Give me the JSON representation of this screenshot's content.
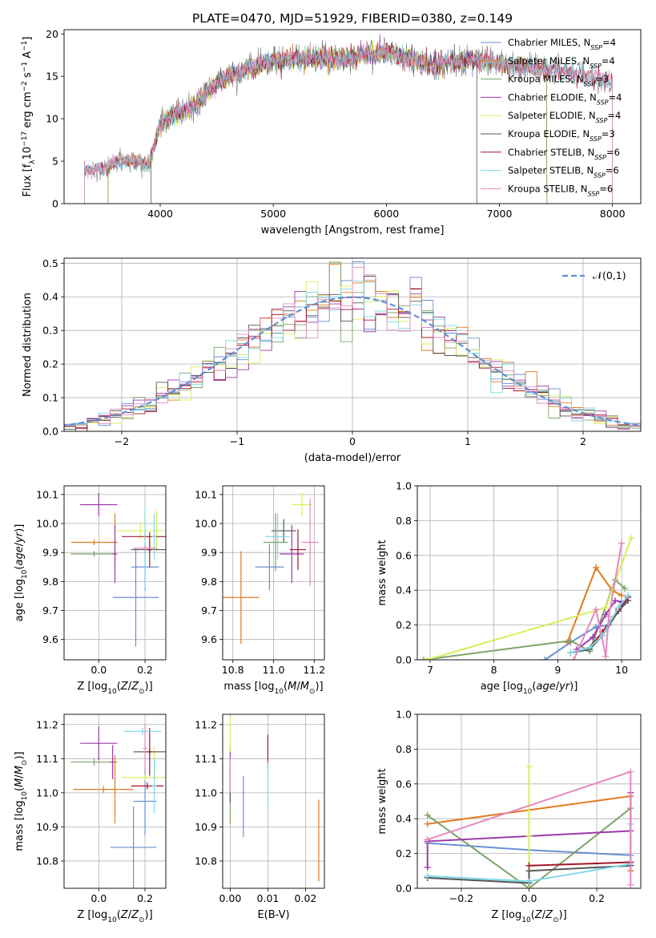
{
  "figure_title": "PLATE=0470, MJD=51929, FIBERID=0380, z=0.149",
  "colors": [
    "#6a8fd6",
    "#e07a1f",
    "#7da46b",
    "#9c3aa9",
    "#d8ee5a",
    "#555555",
    "#a3172a",
    "#7fd8e6",
    "#e589c0"
  ],
  "chart_data": [
    {
      "id": "spectrum",
      "type": "line",
      "title": "PLATE=0470, MJD=51929, FIBERID=0380, z=0.149",
      "xlabel": "wavelength [Angstrom, rest frame]",
      "ylabel": "Flux [f_λ 10^-17 erg cm^-2 s^-1 A^-1]",
      "xlim": [
        3150,
        8250
      ],
      "ylim": [
        0,
        20.5
      ],
      "xticks": [
        4000,
        5000,
        6000,
        7000,
        8000
      ],
      "yticks": [
        0,
        5,
        10,
        15,
        20
      ],
      "grid": false,
      "legend_position": "top-right",
      "continuum": {
        "x": [
          3330,
          3500,
          3600,
          3700,
          3800,
          3900,
          4000,
          4100,
          4200,
          4300,
          4400,
          4500,
          4600,
          4700,
          4800,
          4900,
          5000,
          5200,
          5400,
          5600,
          5800,
          6000,
          6200,
          6400,
          6600,
          6800,
          7000,
          7200,
          7400,
          7600,
          7800,
          8000
        ],
        "y": [
          3.9,
          4.1,
          4.7,
          5.1,
          5.0,
          4.5,
          9.5,
          10.2,
          10.8,
          11.5,
          13.0,
          14.2,
          15.0,
          15.5,
          16.0,
          16.3,
          16.8,
          17.1,
          17.2,
          17.0,
          17.6,
          17.8,
          17.1,
          16.4,
          16.7,
          17.0,
          16.5,
          16.1,
          15.8,
          15.5,
          15.0,
          14.3
        ]
      },
      "series": [
        {
          "name": "Chabrier MILES, N_SSP=4",
          "fit_range": [
            3540,
            7420
          ]
        },
        {
          "name": "Salpeter MILES, N_SSP=4",
          "fit_range": [
            3540,
            7420
          ]
        },
        {
          "name": "Kroupa MILES, N_SSP=3",
          "fit_range": [
            3540,
            7420
          ]
        },
        {
          "name": "Chabrier ELODIE, N_SSP=4",
          "fit_range": [
            3920,
            6800
          ]
        },
        {
          "name": "Salpeter ELODIE, N_SSP=4",
          "fit_range": [
            3920,
            6800
          ]
        },
        {
          "name": "Kroupa ELODIE, N_SSP=3",
          "fit_range": [
            3920,
            6800
          ]
        },
        {
          "name": "Chabrier STELIB, N_SSP=6",
          "fit_range": [
            3330,
            8000
          ]
        },
        {
          "name": "Salpeter STELIB, N_SSP=6",
          "fit_range": [
            3330,
            8000
          ]
        },
        {
          "name": "Kroupa STELIB, N_SSP=6",
          "fit_range": [
            3330,
            8000
          ]
        }
      ]
    },
    {
      "id": "residuals",
      "type": "histogram",
      "xlabel": "(data-model)/error",
      "ylabel": "Normed distribution",
      "xlim": [
        -2.5,
        2.5
      ],
      "ylim": [
        0,
        0.515
      ],
      "xticks": [
        -2,
        -1,
        0,
        1,
        2
      ],
      "yticks": [
        0.0,
        0.1,
        0.2,
        0.3,
        0.4,
        0.5
      ],
      "grid": true,
      "legend_position": "top-right",
      "bin_width": 0.1,
      "reference": {
        "name": "𝒩(0,1)",
        "mean": 0,
        "sigma": 1
      }
    },
    {
      "id": "age_vs_Z",
      "type": "errorbar",
      "xlabel": "Z [log10(Z/Z_sun)]",
      "ylabel": "age [log10(age/yr)]",
      "xlim": [
        -0.15,
        0.29
      ],
      "ylim": [
        9.53,
        10.13
      ],
      "xticks": [
        0.0,
        0.2
      ],
      "yticks": [
        9.6,
        9.7,
        9.8,
        9.9,
        10.0,
        10.1
      ],
      "grid": true,
      "points": [
        {
          "x": 0.2,
          "y": 9.85,
          "xerr": 0.06,
          "yerr": 0.08
        },
        {
          "x": 0.16,
          "y": 9.745,
          "xerr": 0.1,
          "yerr": 0.17
        },
        {
          "x": -0.02,
          "y": 9.935,
          "xerr": 0.1,
          "yerr": 0.01
        },
        {
          "x": 0.07,
          "y": 9.935,
          "xerr": 0.01,
          "yerr": 0.1
        },
        {
          "x": -0.02,
          "y": 9.895,
          "xerr": 0.1,
          "yerr": 0.01
        },
        {
          "x": 0.07,
          "y": 9.895,
          "xerr": 0.01,
          "yerr": 0.1
        },
        {
          "x": -0.0,
          "y": 10.065,
          "xerr": 0.08,
          "yerr": 0.04
        },
        {
          "x": 0.18,
          "y": 9.975,
          "xerr": 0.1,
          "yerr": 0.03
        },
        {
          "x": 0.25,
          "y": 9.975,
          "xerr": 0.01,
          "yerr": 0.07
        },
        {
          "x": 0.22,
          "y": 9.91,
          "xerr": 0.08,
          "yerr": 0.01
        },
        {
          "x": 0.22,
          "y": 9.91,
          "xerr": 0.01,
          "yerr": 0.06
        },
        {
          "x": 0.2,
          "y": 9.955,
          "xerr": 0.1,
          "yerr": 0.01
        },
        {
          "x": 0.24,
          "y": 9.955,
          "xerr": 0.01,
          "yerr": 0.08
        },
        {
          "x": 0.2,
          "y": 9.915,
          "xerr": 0.01,
          "yerr": 0.14
        },
        {
          "x": 0.2,
          "y": 9.915,
          "xerr": 0.05,
          "yerr": 0.01
        }
      ]
    },
    {
      "id": "age_vs_mass",
      "type": "errorbar",
      "xlabel": "mass [log10(M/M_sun)]",
      "ylabel": "",
      "xlim": [
        10.75,
        11.25
      ],
      "ylim": [
        9.53,
        10.13
      ],
      "xticks": [
        10.8,
        11.0,
        11.2
      ],
      "yticks": [
        9.6,
        9.7,
        9.8,
        9.9,
        10.0,
        10.1
      ],
      "grid": true,
      "points": [
        {
          "x": 10.98,
          "y": 9.85,
          "xerr": 0.07,
          "yerr": 0.08
        },
        {
          "x": 10.84,
          "y": 9.745,
          "xerr": 0.09,
          "yerr": 0.16
        },
        {
          "x": 11.01,
          "y": 9.935,
          "xerr": 0.06,
          "yerr": 0.1
        },
        {
          "x": 11.09,
          "y": 9.895,
          "xerr": 0.06,
          "yerr": 0.1
        },
        {
          "x": 11.14,
          "y": 10.065,
          "xerr": 0.05,
          "yerr": 0.04
        },
        {
          "x": 11.05,
          "y": 9.975,
          "xerr": 0.06,
          "yerr": 0.04
        },
        {
          "x": 11.12,
          "y": 9.91,
          "xerr": 0.04,
          "yerr": 0.07
        },
        {
          "x": 11.02,
          "y": 9.955,
          "xerr": 0.06,
          "yerr": 0.08
        },
        {
          "x": 11.18,
          "y": 9.935,
          "xerr": 0.04,
          "yerr": 0.15
        }
      ]
    },
    {
      "id": "mass_weight_vs_age",
      "type": "line",
      "xlabel": "age [log10(age/yr)]",
      "ylabel": "mass weight",
      "xlim": [
        6.8,
        10.3
      ],
      "ylim": [
        0,
        1
      ],
      "xticks": [
        7,
        8,
        9,
        10
      ],
      "yticks": [
        0.0,
        0.2,
        0.4,
        0.6,
        0.8,
        1.0
      ],
      "grid": true,
      "series": [
        {
          "x": [
            8.8,
            9.2,
            9.6,
            9.8,
            10.0
          ],
          "y": [
            0.0,
            0.1,
            0.19,
            0.2,
            0.33
          ]
        },
        {
          "x": [
            9.15,
            9.6,
            9.85,
            10.0
          ],
          "y": [
            0.1,
            0.53,
            0.4,
            0.37
          ]
        },
        {
          "x": [
            6.9,
            9.2,
            9.5,
            9.9,
            10.05
          ],
          "y": [
            0.0,
            0.11,
            0.05,
            0.46,
            0.41
          ]
        },
        {
          "x": [
            9.3,
            9.55,
            9.75,
            9.9,
            10.05
          ],
          "y": [
            0.06,
            0.13,
            0.26,
            0.34,
            0.33
          ]
        },
        {
          "x": [
            6.95,
            9.75,
            10.15
          ],
          "y": [
            0.0,
            0.3,
            0.7
          ]
        },
        {
          "x": [
            9.2,
            9.5,
            9.7,
            9.95,
            10.1
          ],
          "y": [
            0.04,
            0.06,
            0.14,
            0.28,
            0.34
          ]
        },
        {
          "x": [
            9.2,
            9.5,
            9.7,
            9.95,
            10.1
          ],
          "y": [
            0.04,
            0.07,
            0.16,
            0.29,
            0.36
          ]
        },
        {
          "x": [
            9.2,
            9.5,
            9.7,
            9.95,
            10.1
          ],
          "y": [
            0.04,
            0.07,
            0.14,
            0.3,
            0.37
          ]
        },
        {
          "x": [
            9.25,
            9.6,
            9.75,
            9.8,
            10.0
          ],
          "y": [
            0.0,
            0.29,
            0.02,
            0.25,
            0.67
          ]
        }
      ]
    },
    {
      "id": "mass_vs_Z",
      "type": "errorbar",
      "xlabel": "Z [log10(Z/Z_sun)]",
      "ylabel": "mass [log10(M/M_sun)]",
      "xlim": [
        -0.15,
        0.29
      ],
      "ylim": [
        10.72,
        11.23
      ],
      "xticks": [
        0.0,
        0.2
      ],
      "yticks": [
        10.8,
        10.9,
        11.0,
        11.1,
        11.2
      ],
      "grid": true,
      "points": [
        {
          "x": 0.2,
          "y": 10.975,
          "xerr": 0.05,
          "yerr": 0.1
        },
        {
          "x": 0.15,
          "y": 10.84,
          "xerr": 0.1,
          "yerr": 0.12
        },
        {
          "x": 0.02,
          "y": 11.01,
          "xerr": 0.13,
          "yerr": 0.01
        },
        {
          "x": 0.07,
          "y": 11.01,
          "xerr": 0.01,
          "yerr": 0.1
        },
        {
          "x": -0.02,
          "y": 11.09,
          "xerr": 0.1,
          "yerr": 0.01
        },
        {
          "x": 0.06,
          "y": 11.09,
          "xerr": 0.01,
          "yerr": 0.05
        },
        {
          "x": -0.0,
          "y": 11.145,
          "xerr": 0.08,
          "yerr": 0.05
        },
        {
          "x": 0.2,
          "y": 11.045,
          "xerr": 0.1,
          "yerr": 0.01
        },
        {
          "x": 0.24,
          "y": 11.045,
          "xerr": 0.01,
          "yerr": 0.09
        },
        {
          "x": 0.22,
          "y": 11.12,
          "xerr": 0.07,
          "yerr": 0.01
        },
        {
          "x": 0.22,
          "y": 11.12,
          "xerr": 0.01,
          "yerr": 0.07
        },
        {
          "x": 0.21,
          "y": 11.02,
          "xerr": 0.07,
          "yerr": 0.01
        },
        {
          "x": 0.24,
          "y": 11.02,
          "xerr": 0.01,
          "yerr": 0.08
        },
        {
          "x": 0.19,
          "y": 11.18,
          "xerr": 0.08,
          "yerr": 0.01
        },
        {
          "x": 0.2,
          "y": 11.13,
          "xerr": 0.01,
          "yerr": 0.07
        }
      ]
    },
    {
      "id": "mass_vs_ebv",
      "type": "errorbar",
      "xlabel": "E(B-V)",
      "ylabel": "",
      "xlim": [
        -0.002,
        0.025
      ],
      "ylim": [
        10.72,
        11.23
      ],
      "xticks": [
        0.0,
        0.01,
        0.02
      ],
      "yticks": [
        10.8,
        10.9,
        11.0,
        11.1,
        11.2
      ],
      "grid": true,
      "points": [
        {
          "x": 0.0035,
          "y": 10.96,
          "xerr": 0.0,
          "yerr": 0.09
        },
        {
          "x": 0.0235,
          "y": 10.86,
          "xerr": 0.0,
          "yerr": 0.12
        },
        {
          "x": 0.0,
          "y": 11.0,
          "xerr": 0.0,
          "yerr": 0.09
        },
        {
          "x": 0.0,
          "y": 11.09,
          "xerr": 0.0,
          "yerr": 0.04
        },
        {
          "x": 0.0,
          "y": 11.17,
          "xerr": 0.0,
          "yerr": 0.05
        },
        {
          "x": 0.0,
          "y": 11.02,
          "xerr": 0.0,
          "yerr": 0.05
        },
        {
          "x": 0.01,
          "y": 11.12,
          "xerr": 0.0,
          "yerr": 0.05
        },
        {
          "x": 0.01,
          "y": 11.02,
          "xerr": 0.0,
          "yerr": 0.07
        },
        {
          "x": 0.0,
          "y": 11.05,
          "xerr": 0.0,
          "yerr": 0.05
        }
      ]
    },
    {
      "id": "mass_weight_vs_Z",
      "type": "line",
      "xlabel": "Z [log10(Z/Z_sun)]",
      "ylabel": "mass weight",
      "xlim": [
        -0.33,
        0.33
      ],
      "ylim": [
        0,
        1
      ],
      "xticks": [
        -0.2,
        0.0,
        0.2
      ],
      "yticks": [
        0.0,
        0.2,
        0.4,
        0.6,
        0.8,
        1.0
      ],
      "grid": true,
      "series": [
        {
          "x": [
            -0.3,
            0.0,
            0.3
          ],
          "y": [
            0.26,
            0.22,
            0.19
          ]
        },
        {
          "x": [
            -0.3,
            0.3,
            0.3
          ],
          "y": [
            0.37,
            0.53,
            0.1
          ]
        },
        {
          "x": [
            -0.3,
            0.0,
            0.3
          ],
          "y": [
            0.42,
            0.0,
            0.46
          ]
        },
        {
          "x": [
            -0.3,
            -0.3,
            0.3,
            0.3
          ],
          "y": [
            0.12,
            0.27,
            0.33,
            0.55
          ]
        },
        {
          "x": [
            0.0,
            0.0,
            0.0
          ],
          "y": [
            0.0,
            0.3,
            0.7
          ]
        },
        {
          "x": [
            -0.3,
            0.0,
            0.0,
            0.3
          ],
          "y": [
            0.06,
            0.03,
            0.1,
            0.13
          ]
        },
        {
          "x": [
            0.0,
            0.3
          ],
          "y": [
            0.13,
            0.15
          ]
        },
        {
          "x": [
            -0.3,
            0.0,
            0.3,
            0.3
          ],
          "y": [
            0.07,
            0.04,
            0.14,
            0.37
          ]
        },
        {
          "x": [
            -0.3,
            0.3,
            0.3
          ],
          "y": [
            0.28,
            0.67,
            0.02
          ]
        }
      ]
    }
  ]
}
